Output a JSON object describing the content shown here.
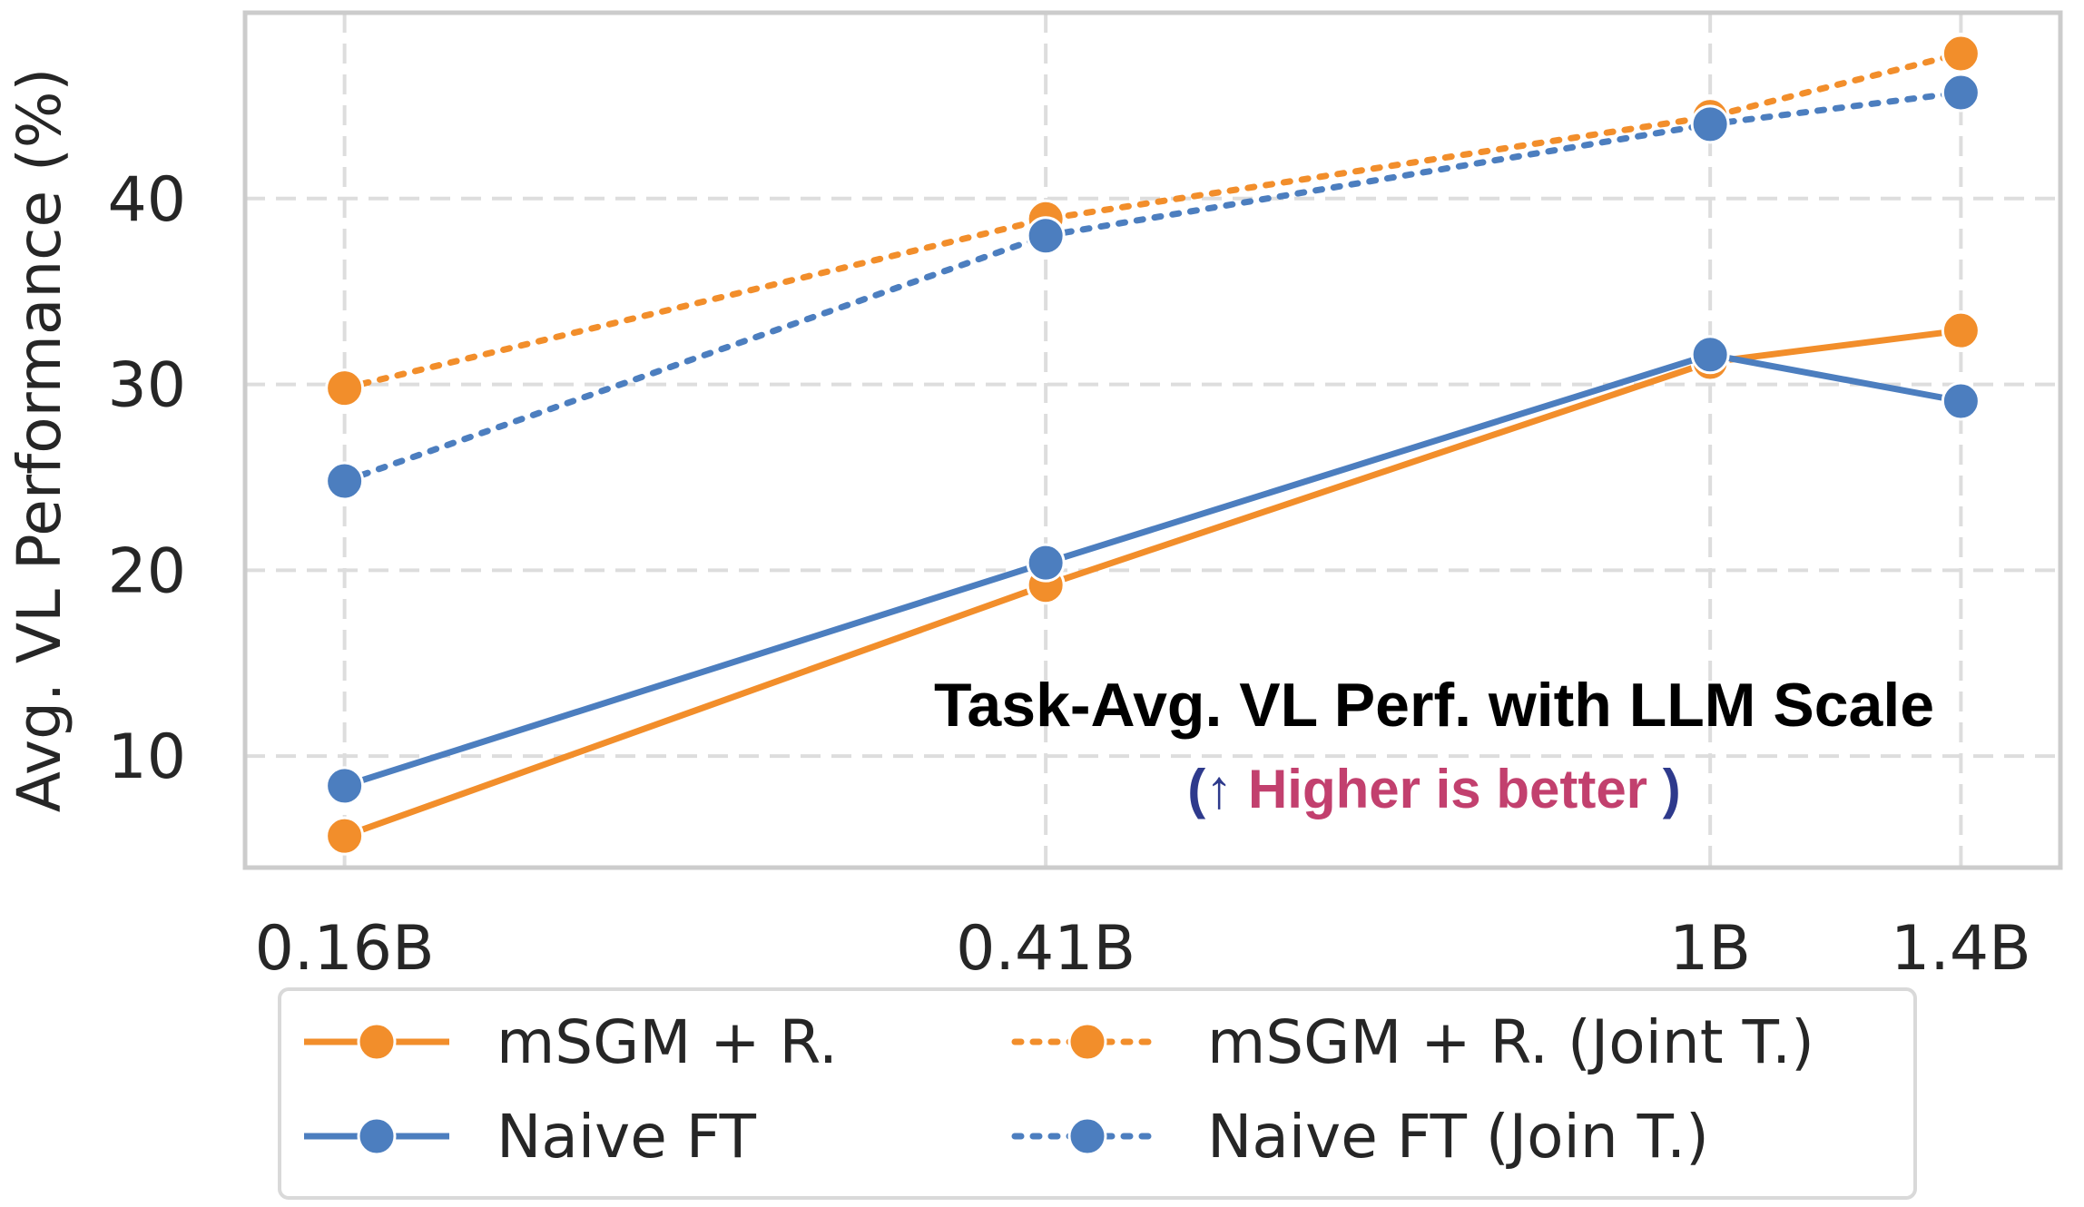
{
  "chart_data": {
    "type": "line",
    "x": [
      "0.16B",
      "0.41B",
      "1B",
      "1.4B"
    ],
    "x_values": [
      0.16,
      0.41,
      1.0,
      1.4
    ],
    "x_scale": "log",
    "xlim": [
      0.14,
      1.6
    ],
    "ylim": [
      4,
      50
    ],
    "yticks": [
      10,
      20,
      30,
      40
    ],
    "ylabel": "Avg. VL Performance (%)",
    "xlabel": "",
    "grid": true,
    "legend_position": "bottom-outside",
    "series": [
      {
        "name": "mSGM + R.",
        "values": [
          5.7,
          19.2,
          31.2,
          32.9
        ],
        "color": "#F28E2B",
        "style": "solid"
      },
      {
        "name": "Naive FT",
        "values": [
          8.4,
          20.4,
          31.6,
          29.1
        ],
        "color": "#4C7EBF",
        "style": "solid"
      },
      {
        "name": "mSGM + R. (Joint T.)",
        "values": [
          29.8,
          38.9,
          44.4,
          47.8
        ],
        "color": "#F28E2B",
        "style": "dotted"
      },
      {
        "name": "Naive FT (Join T.)",
        "values": [
          24.8,
          38.0,
          44.0,
          45.7
        ],
        "color": "#4C7EBF",
        "style": "dotted"
      }
    ],
    "annotation": {
      "title": "Task-Avg. VL Perf. with LLM Scale",
      "open_paren": "(",
      "arrow": "↑",
      "note": "Higher is better",
      "close_paren": ")",
      "paren_color": "#2E3A8C",
      "note_color": "#C2406E"
    }
  }
}
